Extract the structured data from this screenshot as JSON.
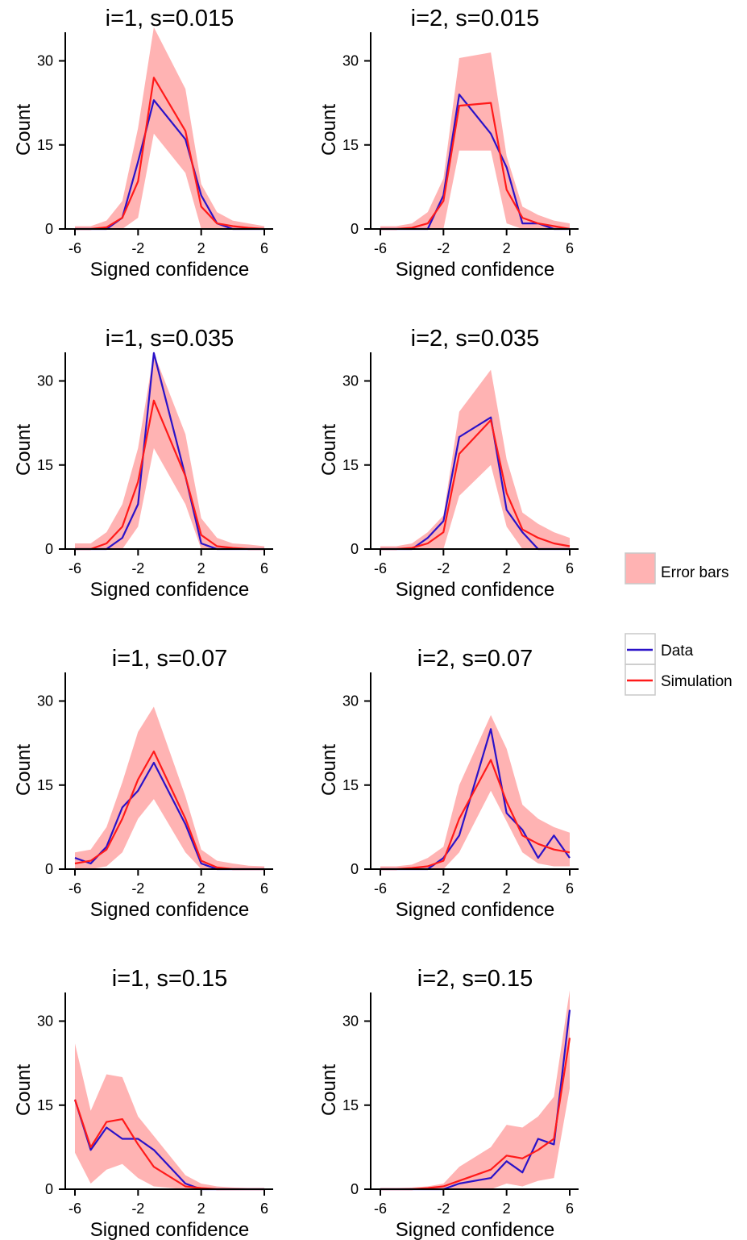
{
  "legend": {
    "error_label": "Error bars",
    "data_label": "Data",
    "sim_label": "Simulation"
  },
  "colors": {
    "data": "#2a12c8",
    "simulation": "#ff1a1a",
    "error_fill": "#ffb3b3"
  },
  "chart_data": [
    {
      "type": "line",
      "title": "i=1,   s=0.015",
      "xlabel": "Signed confidence",
      "ylabel": "Count",
      "xlim": [
        -6,
        6
      ],
      "ylim": [
        0,
        35
      ],
      "xticks": [
        -6,
        -2,
        2,
        6
      ],
      "yticks": [
        0,
        15,
        30
      ],
      "x": [
        -6,
        -5,
        -4,
        -3,
        -2,
        -1,
        1,
        2,
        3,
        4,
        5,
        6
      ],
      "series": [
        {
          "name": "Data",
          "values": [
            0,
            0,
            0,
            2,
            12,
            23,
            16,
            6,
            1,
            0,
            0,
            0
          ]
        },
        {
          "name": "Simulation",
          "values": [
            0,
            0,
            0.3,
            2,
            8.5,
            27,
            17.5,
            4,
            1,
            0.5,
            0.2,
            0
          ]
        }
      ],
      "error_low": [
        0,
        0,
        0,
        0,
        2,
        17,
        10,
        0,
        0,
        0,
        0,
        0
      ],
      "error_high": [
        0.5,
        0.5,
        1.5,
        5,
        18,
        36,
        25,
        8,
        3,
        1.5,
        1,
        0.5
      ]
    },
    {
      "type": "line",
      "title": "i=2,   s=0.015",
      "xlabel": "Signed confidence",
      "ylabel": "Count",
      "xlim": [
        -6,
        6
      ],
      "ylim": [
        0,
        35
      ],
      "xticks": [
        -6,
        -2,
        2,
        6
      ],
      "yticks": [
        0,
        15,
        30
      ],
      "x": [
        -6,
        -5,
        -4,
        -3,
        -2,
        -1,
        1,
        2,
        3,
        4,
        5,
        6
      ],
      "series": [
        {
          "name": "Data",
          "values": [
            0,
            0,
            0,
            0,
            6,
            24,
            17,
            11,
            1,
            1,
            0,
            0
          ]
        },
        {
          "name": "Simulation",
          "values": [
            0,
            0,
            0.2,
            1,
            5,
            22,
            22.5,
            7,
            2,
            1,
            0.5,
            0
          ]
        }
      ],
      "error_low": [
        0,
        0,
        0,
        0,
        0,
        14,
        14,
        1,
        0,
        0,
        0,
        0
      ],
      "error_high": [
        0.5,
        0.5,
        1,
        3,
        9,
        30.5,
        31.5,
        13,
        4,
        2.5,
        1.5,
        1
      ]
    },
    {
      "type": "line",
      "title": "i=1,   s=0.035",
      "xlabel": "Signed confidence",
      "ylabel": "Count",
      "xlim": [
        -6,
        6
      ],
      "ylim": [
        0,
        35
      ],
      "xticks": [
        -6,
        -2,
        2,
        6
      ],
      "yticks": [
        0,
        15,
        30
      ],
      "x": [
        -6,
        -5,
        -4,
        -3,
        -2,
        -1,
        1,
        2,
        3,
        4,
        5,
        6
      ],
      "series": [
        {
          "name": "Data",
          "values": [
            0,
            0,
            0,
            2,
            8,
            35,
            13,
            1,
            0,
            0,
            0,
            0
          ]
        },
        {
          "name": "Simulation",
          "values": [
            0,
            0,
            1,
            4,
            12,
            26.5,
            13,
            2.5,
            0.5,
            0.2,
            0,
            0
          ]
        }
      ],
      "error_low": [
        0,
        0,
        0,
        0,
        4,
        18,
        8,
        0,
        0,
        0,
        0,
        0
      ],
      "error_high": [
        1,
        1,
        3,
        8,
        18,
        35,
        20.5,
        5.5,
        2,
        1,
        0.8,
        0.5
      ]
    },
    {
      "type": "line",
      "title": "i=2,   s=0.035",
      "xlabel": "Signed confidence",
      "ylabel": "Count",
      "xlim": [
        -6,
        6
      ],
      "ylim": [
        0,
        35
      ],
      "xticks": [
        -6,
        -2,
        2,
        6
      ],
      "yticks": [
        0,
        15,
        30
      ],
      "x": [
        -6,
        -5,
        -4,
        -3,
        -2,
        -1,
        1,
        2,
        3,
        4,
        5,
        6
      ],
      "series": [
        {
          "name": "Data",
          "values": [
            0,
            0,
            0,
            2,
            5,
            20,
            23.5,
            7,
            3,
            0,
            0,
            0
          ]
        },
        {
          "name": "Simulation",
          "values": [
            0,
            0,
            0.2,
            1,
            3,
            17,
            23,
            10,
            3.5,
            2,
            1,
            0.5
          ]
        }
      ],
      "error_low": [
        0,
        0,
        0,
        0,
        0,
        9.5,
        15,
        4,
        0,
        0,
        0,
        0
      ],
      "error_high": [
        0.5,
        0.5,
        1,
        3,
        6,
        24.5,
        32,
        16,
        6.5,
        4.5,
        3,
        2
      ]
    },
    {
      "type": "line",
      "title": "i=1,   s=0.07",
      "xlabel": "Signed confidence",
      "ylabel": "Count",
      "xlim": [
        -6,
        6
      ],
      "ylim": [
        0,
        35
      ],
      "xticks": [
        -6,
        -2,
        2,
        6
      ],
      "yticks": [
        0,
        15,
        30
      ],
      "x": [
        -6,
        -5,
        -4,
        -3,
        -2,
        -1,
        1,
        2,
        3,
        4,
        5,
        6
      ],
      "series": [
        {
          "name": "Data",
          "values": [
            2,
            1,
            4,
            11,
            14,
            19,
            8,
            1,
            0,
            0,
            0,
            0
          ]
        },
        {
          "name": "Simulation",
          "values": [
            1,
            1.5,
            3.5,
            9,
            16,
            21,
            9,
            1.5,
            0.3,
            0,
            0,
            0
          ]
        }
      ],
      "error_low": [
        0,
        0,
        0.5,
        3,
        9,
        12.5,
        3,
        0,
        0,
        0,
        0,
        0
      ],
      "error_high": [
        3,
        3.5,
        7.5,
        15.5,
        24.5,
        29,
        13,
        3.5,
        1.5,
        1,
        0.6,
        0.5
      ]
    },
    {
      "type": "line",
      "title": "i=2,   s=0.07",
      "xlabel": "Signed confidence",
      "ylabel": "Count",
      "xlim": [
        -6,
        6
      ],
      "ylim": [
        0,
        35
      ],
      "xticks": [
        -6,
        -2,
        2,
        6
      ],
      "yticks": [
        0,
        15,
        30
      ],
      "x": [
        -6,
        -5,
        -4,
        -3,
        -2,
        -1,
        1,
        2,
        3,
        4,
        5,
        6
      ],
      "series": [
        {
          "name": "Data",
          "values": [
            0,
            0,
            0,
            0,
            2,
            6,
            25,
            10,
            7,
            2,
            6,
            2
          ]
        },
        {
          "name": "Simulation",
          "values": [
            0,
            0,
            0.2,
            0.5,
            1.5,
            9,
            19.5,
            12,
            6,
            4.5,
            3.5,
            3
          ]
        }
      ],
      "error_low": [
        0,
        0,
        0,
        0,
        0,
        3,
        14,
        8.5,
        3,
        1,
        0.5,
        0.5
      ],
      "error_high": [
        0.5,
        0.5,
        0.8,
        2,
        4,
        15,
        27.5,
        21.5,
        11.5,
        9,
        7.5,
        6.5
      ]
    },
    {
      "type": "line",
      "title": "i=1,   s=0.15",
      "xlabel": "Signed confidence",
      "ylabel": "Count",
      "xlim": [
        -6,
        6
      ],
      "ylim": [
        0,
        35
      ],
      "xticks": [
        -6,
        -2,
        2,
        6
      ],
      "yticks": [
        0,
        15,
        30
      ],
      "x": [
        -6,
        -5,
        -4,
        -3,
        -2,
        -1,
        1,
        2,
        3,
        4,
        5,
        6
      ],
      "series": [
        {
          "name": "Data",
          "values": [
            16,
            7,
            11,
            9,
            9,
            7,
            1,
            0,
            0,
            0,
            0,
            0
          ]
        },
        {
          "name": "Simulation",
          "values": [
            16,
            7.5,
            12,
            12.5,
            8,
            4,
            0.5,
            0.2,
            0,
            0,
            0,
            0
          ]
        }
      ],
      "error_low": [
        6.5,
        1,
        3.5,
        4.5,
        2,
        0.5,
        0,
        0,
        0,
        0,
        0,
        0
      ],
      "error_high": [
        26,
        14,
        20.5,
        20,
        13,
        9.5,
        2.5,
        1,
        0.5,
        0.3,
        0.2,
        0.2
      ]
    },
    {
      "type": "line",
      "title": "i=2,   s=0.15",
      "xlabel": "Signed confidence",
      "ylabel": "Count",
      "xlim": [
        -6,
        6
      ],
      "ylim": [
        0,
        35
      ],
      "xticks": [
        -6,
        -2,
        2,
        6
      ],
      "yticks": [
        0,
        15,
        30
      ],
      "x": [
        -6,
        -5,
        -4,
        -3,
        -2,
        -1,
        1,
        2,
        3,
        4,
        5,
        6
      ],
      "series": [
        {
          "name": "Data",
          "values": [
            0,
            0,
            0,
            0,
            0,
            1,
            2,
            5,
            3,
            9,
            8,
            32
          ]
        },
        {
          "name": "Simulation",
          "values": [
            0,
            0,
            0,
            0.2,
            0.5,
            1.5,
            3.5,
            6,
            5.5,
            7,
            9,
            27
          ]
        }
      ],
      "error_low": [
        0,
        0,
        0,
        0,
        0,
        0,
        0,
        1,
        0.5,
        1.5,
        2,
        18
      ],
      "error_high": [
        0.2,
        0.2,
        0.3,
        0.5,
        1,
        4,
        7.5,
        11.5,
        11,
        13,
        16.5,
        35.5
      ]
    }
  ]
}
